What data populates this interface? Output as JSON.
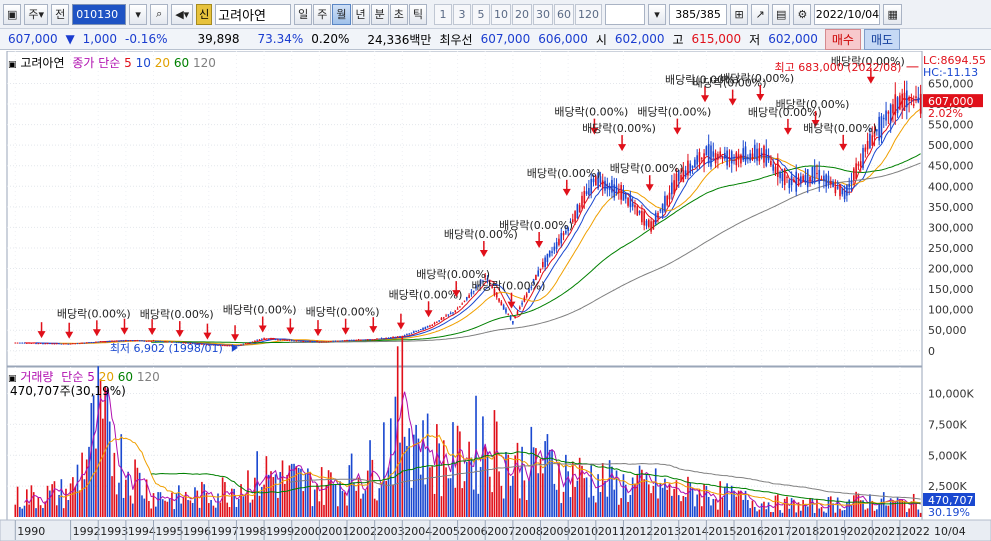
{
  "toolbar": {
    "period_prefix": "주",
    "scope": "전",
    "code": "010130",
    "sin_badge": "신",
    "name": "고려아연",
    "periods": [
      "일",
      "주",
      "월",
      "년",
      "분",
      "초",
      "틱"
    ],
    "active_period": "월",
    "steps": [
      "1",
      "3",
      "5",
      "10",
      "20",
      "30",
      "60",
      "120"
    ],
    "count": "385/385",
    "date": "2022/10/04"
  },
  "inforow": {
    "price": "607,000",
    "change": "1,000",
    "change_pct": "-0.16%",
    "volume": "39,898",
    "ratio": "73.34%",
    "turnover": "0.20%",
    "amount": "24,336백만",
    "best_label": "최우선",
    "best_ask": "607,000",
    "best_bid": "606,000",
    "open_label": "시",
    "open": "602,000",
    "high_label": "고",
    "high": "615,000",
    "low_label": "저",
    "low": "602,000",
    "buy_label": "매수",
    "sell_label": "매도"
  },
  "price_panel": {
    "title": "고려아연",
    "ma_label": "종가 단순",
    "ma_periods": [
      "5",
      "10",
      "20",
      "60",
      "120"
    ],
    "lc_label": "LC:8694.55",
    "hc_label": "HC:-11.13",
    "current_price_tag": "607,000",
    "current_pct_tag": "2.02%",
    "high_annotation": "최고 683,000 (2022/08)",
    "low_annotation": "최저 6,902 (1998/01)",
    "dividend_label": "배당락(0.00%)"
  },
  "volume_panel": {
    "title": "거래량",
    "ma_label": "단순",
    "ma_periods": [
      "5",
      "20",
      "60",
      "120"
    ],
    "last_volume": "470,707주(30,19%)",
    "volume_tag": "470,707",
    "volume_pct_tag": "30.19%"
  },
  "x_axis": {
    "years": [
      "1990",
      "1992",
      "1993",
      "1994",
      "1995",
      "1996",
      "1997",
      "1998",
      "1999",
      "2000",
      "2001",
      "2002",
      "2003",
      "2004",
      "2005",
      "2006",
      "2007",
      "2008",
      "2009",
      "2010",
      "2011",
      "2012",
      "2013",
      "2014",
      "2015",
      "2016",
      "2017",
      "2018",
      "2019",
      "2020",
      "2021",
      "2022"
    ],
    "last_label": "10/04"
  },
  "colors": {
    "up": "#e0101a",
    "down": "#1a48d0",
    "ma5": "#e0101a",
    "ma10": "#1a48d0",
    "ma20": "#f0a000",
    "ma60": "#008000",
    "ma120": "#808080"
  },
  "chart_data": {
    "type": "candlestick",
    "title": "고려아연",
    "x_unit": "year",
    "price_axis_ticks": [
      0,
      50000,
      100000,
      150000,
      200000,
      250000,
      300000,
      350000,
      400000,
      450000,
      500000,
      550000,
      600000,
      650000
    ],
    "price_axis_labels": [
      "0",
      "50,000",
      "100,000",
      "150,000",
      "200,000",
      "250,000",
      "300,000",
      "350,000",
      "400,000",
      "450,000",
      "500,000",
      "550,000",
      "600,000",
      "650,000"
    ],
    "price_ylim": [
      -20000,
      690000
    ],
    "volume_axis_ticks": [
      2500000,
      5000000,
      7500000,
      10000000
    ],
    "volume_axis_labels": [
      "2,500K",
      "5,000K",
      "7,500K",
      "10,000K"
    ],
    "volume_ylim": [
      0,
      11500000
    ],
    "price_close_by_year": [
      {
        "x": 1990,
        "y": 20000
      },
      {
        "x": 1991,
        "y": 18000
      },
      {
        "x": 1992,
        "y": 17000
      },
      {
        "x": 1993,
        "y": 22000
      },
      {
        "x": 1994,
        "y": 25000
      },
      {
        "x": 1995,
        "y": 24000
      },
      {
        "x": 1996,
        "y": 20000
      },
      {
        "x": 1997,
        "y": 15000
      },
      {
        "x": 1998,
        "y": 12000
      },
      {
        "x": 1999,
        "y": 30000
      },
      {
        "x": 2000,
        "y": 25000
      },
      {
        "x": 2001,
        "y": 22000
      },
      {
        "x": 2002,
        "y": 25000
      },
      {
        "x": 2003,
        "y": 28000
      },
      {
        "x": 2004,
        "y": 35000
      },
      {
        "x": 2005,
        "y": 60000
      },
      {
        "x": 2006,
        "y": 100000
      },
      {
        "x": 2007,
        "y": 180000
      },
      {
        "x": 2008,
        "y": 70000
      },
      {
        "x": 2009,
        "y": 200000
      },
      {
        "x": 2010,
        "y": 300000
      },
      {
        "x": 2011,
        "y": 420000
      },
      {
        "x": 2012,
        "y": 380000
      },
      {
        "x": 2013,
        "y": 300000
      },
      {
        "x": 2014,
        "y": 420000
      },
      {
        "x": 2015,
        "y": 480000
      },
      {
        "x": 2016,
        "y": 470000
      },
      {
        "x": 2017,
        "y": 480000
      },
      {
        "x": 2018,
        "y": 410000
      },
      {
        "x": 2019,
        "y": 430000
      },
      {
        "x": 2020,
        "y": 380000
      },
      {
        "x": 2021,
        "y": 520000
      },
      {
        "x": 2022,
        "y": 607000
      }
    ],
    "high": {
      "value": 683000,
      "date": "2022/08"
    },
    "low": {
      "value": 6902,
      "date": "1998/01"
    },
    "volume_by_year": [
      {
        "x": 1990,
        "y": 1500000
      },
      {
        "x": 1992,
        "y": 2000000
      },
      {
        "x": 1993,
        "y": 7500000
      },
      {
        "x": 1994,
        "y": 4000000
      },
      {
        "x": 1995,
        "y": 1800000
      },
      {
        "x": 1996,
        "y": 1500000
      },
      {
        "x": 1997,
        "y": 1800000
      },
      {
        "x": 1998,
        "y": 2500000
      },
      {
        "x": 1999,
        "y": 3500000
      },
      {
        "x": 2000,
        "y": 3000000
      },
      {
        "x": 2001,
        "y": 2500000
      },
      {
        "x": 2002,
        "y": 3000000
      },
      {
        "x": 2003,
        "y": 4000000
      },
      {
        "x": 2004,
        "y": 9000000
      },
      {
        "x": 2005,
        "y": 5000000
      },
      {
        "x": 2006,
        "y": 4500000
      },
      {
        "x": 2007,
        "y": 6500000
      },
      {
        "x": 2008,
        "y": 4000000
      },
      {
        "x": 2009,
        "y": 4500000
      },
      {
        "x": 2010,
        "y": 3500000
      },
      {
        "x": 2011,
        "y": 3000000
      },
      {
        "x": 2012,
        "y": 2500000
      },
      {
        "x": 2013,
        "y": 2500000
      },
      {
        "x": 2014,
        "y": 2000000
      },
      {
        "x": 2015,
        "y": 2000000
      },
      {
        "x": 2016,
        "y": 1500000
      },
      {
        "x": 2017,
        "y": 1200000
      },
      {
        "x": 2018,
        "y": 1000000
      },
      {
        "x": 2019,
        "y": 900000
      },
      {
        "x": 2020,
        "y": 1200000
      },
      {
        "x": 2021,
        "y": 1300000
      },
      {
        "x": 2022,
        "y": 1100000
      }
    ]
  }
}
